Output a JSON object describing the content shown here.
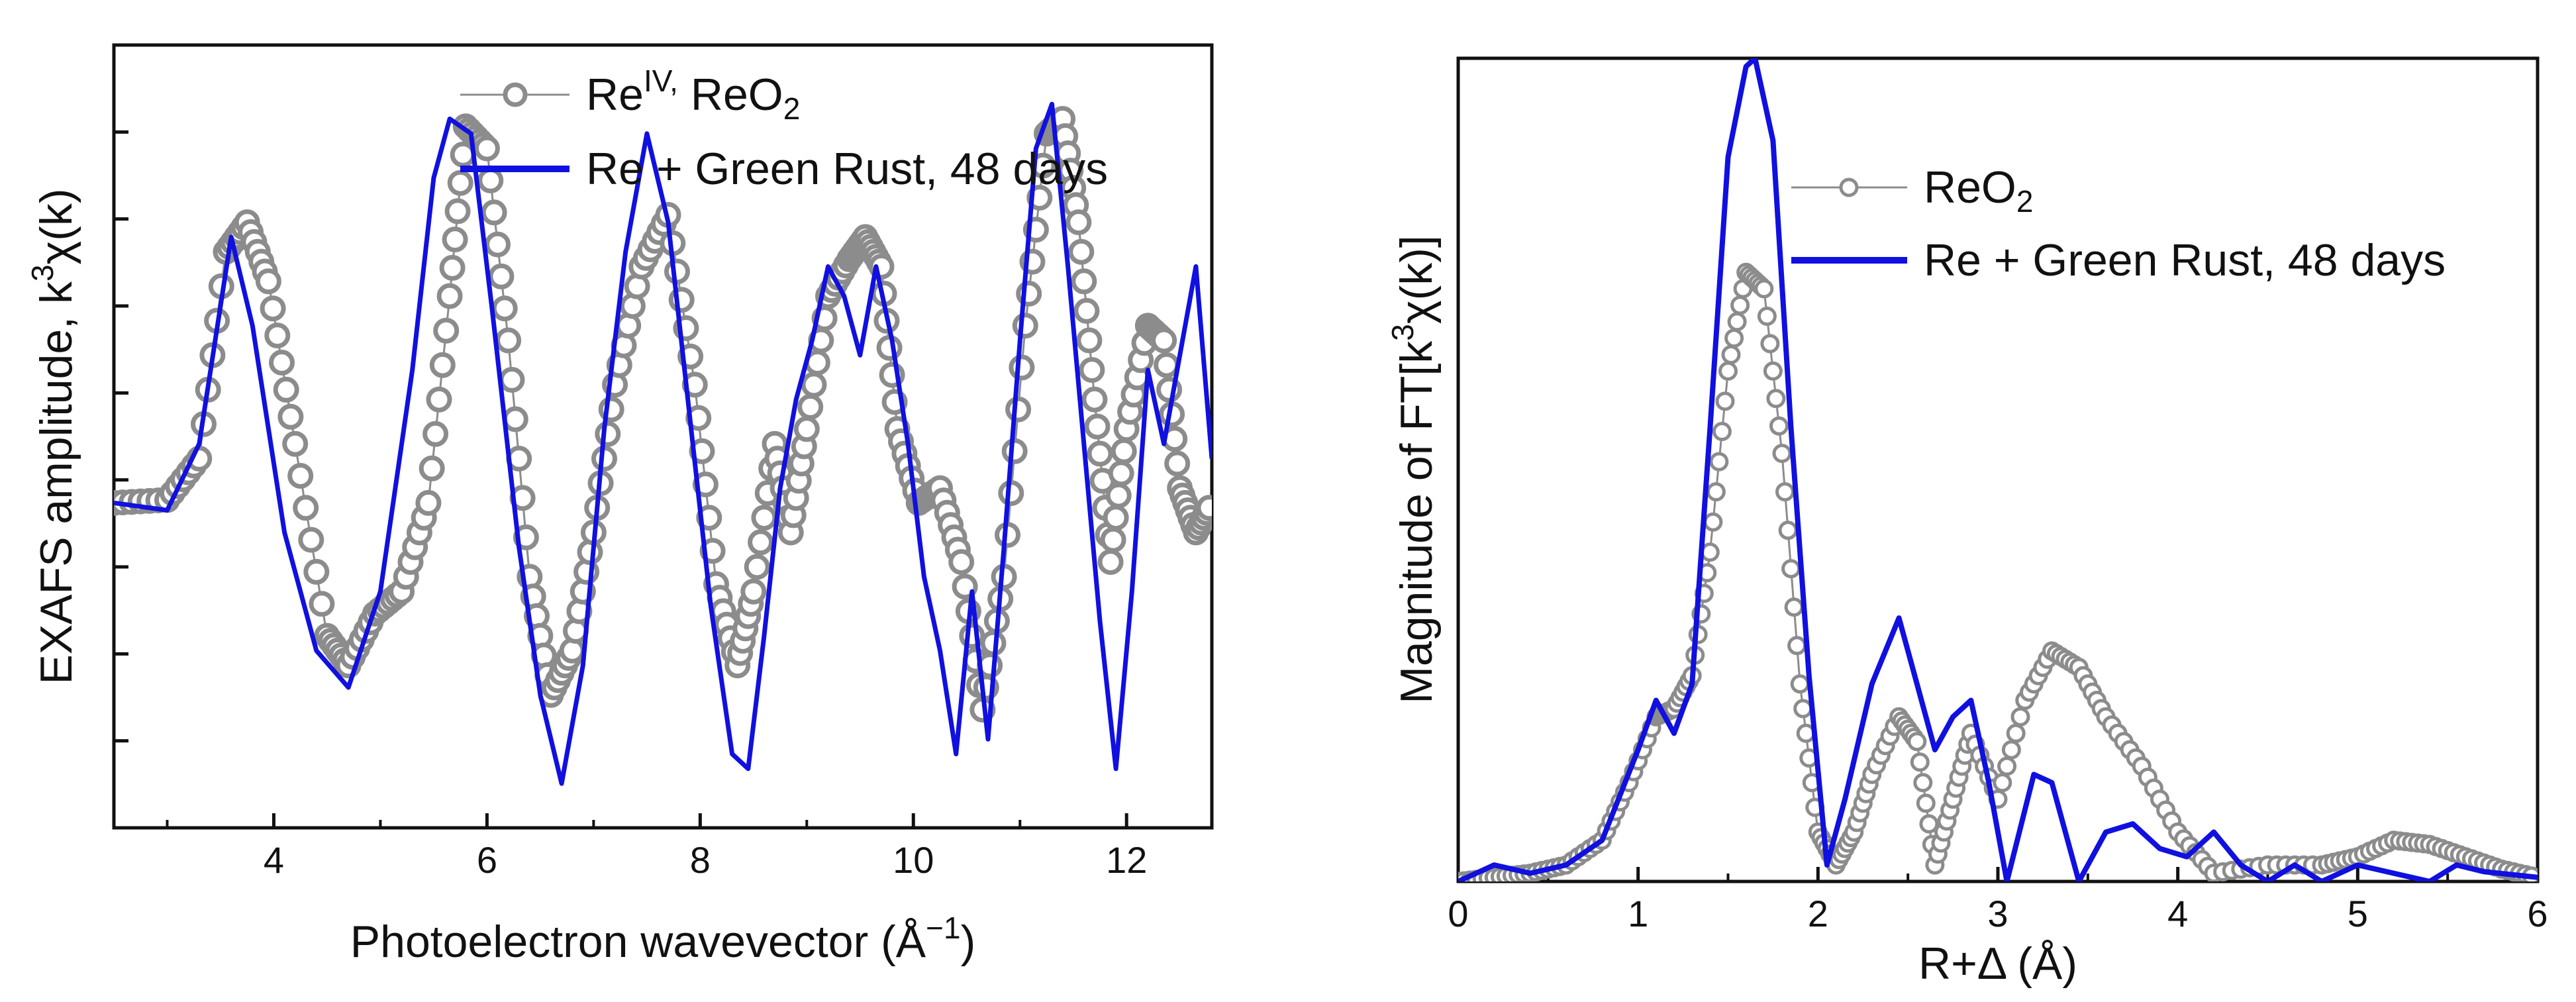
{
  "colors": {
    "reference": "#8c8c8c",
    "sample": "#1010e0",
    "axis": "#111111"
  },
  "charts": [
    {
      "xlabel_main": "Photoelectron wavevector (Å",
      "xlabel_sup": "−1",
      "xlabel_end": ")",
      "ylabel_main": "EXAFS amplitude, k",
      "ylabel_sup": "3",
      "ylabel_end": "χ(k)",
      "xticks": [
        "4",
        "6",
        "8",
        "10",
        "12"
      ],
      "legend": {
        "ref_main": "Re",
        "ref_sup": "IV,",
        "ref_end": " ReO",
        "ref_sub": "2",
        "sample": "Re + Green Rust, 48 days"
      }
    },
    {
      "xlabel": "R+Δ (Å)",
      "ylabel_main": "Magnitude of FT[k",
      "ylabel_sup": "3",
      "ylabel_end": "χ(k)]",
      "xticks": [
        "0",
        "1",
        "2",
        "3",
        "4",
        "5",
        "6"
      ],
      "legend": {
        "ref_main": "ReO",
        "ref_sub": "2",
        "sample": "Re + Green Rust, 48 days"
      }
    }
  ],
  "chart_data": [
    {
      "type": "line",
      "xlabel": "Photoelectron wavevector (Å−1)",
      "ylabel": "EXAFS amplitude, k3χ(k)",
      "xlim": [
        2.5,
        12.8
      ],
      "ylim": [
        -2.5,
        2.8
      ],
      "series": [
        {
          "name": "ReIV, ReO2",
          "marker": "circle",
          "x": [
            2.5,
            3.0,
            3.3,
            3.55,
            3.75,
            3.95,
            4.2,
            4.5,
            4.7,
            4.95,
            5.2,
            5.45,
            5.65,
            5.8,
            6.0,
            6.2,
            6.4,
            6.6,
            6.8,
            7.0,
            7.2,
            7.45,
            7.7,
            7.95,
            8.15,
            8.35,
            8.5,
            8.7,
            8.85,
            9.0,
            9.2,
            9.4,
            9.55,
            9.7,
            9.85,
            10.05,
            10.25,
            10.45,
            10.65,
            10.85,
            11.05,
            11.25,
            11.4,
            11.55,
            11.7,
            11.85,
            12.0,
            12.2,
            12.35,
            12.5,
            12.65,
            12.8
          ],
          "y": [
            -0.3,
            -0.28,
            0.0,
            1.4,
            1.6,
            1.2,
            0.1,
            -1.2,
            -1.4,
            -1.05,
            -0.9,
            -0.3,
            1.1,
            2.25,
            2.1,
            0.8,
            -0.8,
            -1.6,
            -1.3,
            -0.5,
            0.5,
            1.3,
            1.65,
            0.5,
            -0.85,
            -1.4,
            -0.9,
            0.1,
            -0.5,
            0.2,
            1.1,
            1.35,
            1.5,
            1.3,
            0.2,
            -0.3,
            -0.2,
            -0.7,
            -1.7,
            -0.8,
            0.9,
            2.2,
            2.3,
            1.6,
            0.4,
            -0.7,
            0.2,
            0.9,
            0.8,
            -0.2,
            -0.5,
            -0.3
          ]
        },
        {
          "name": "Re + Green Rust, 48 days",
          "x": [
            2.5,
            3.0,
            3.3,
            3.6,
            3.8,
            4.1,
            4.4,
            4.7,
            5.0,
            5.3,
            5.5,
            5.65,
            5.85,
            6.05,
            6.3,
            6.5,
            6.7,
            6.9,
            7.1,
            7.3,
            7.5,
            7.7,
            7.9,
            8.1,
            8.3,
            8.45,
            8.6,
            8.75,
            8.9,
            9.05,
            9.2,
            9.35,
            9.5,
            9.65,
            9.8,
            9.95,
            10.1,
            10.25,
            10.4,
            10.55,
            10.7,
            10.85,
            11.0,
            11.15,
            11.3,
            11.45,
            11.6,
            11.75,
            11.9,
            12.05,
            12.2,
            12.35,
            12.5,
            12.65,
            12.8
          ],
          "y": [
            -0.3,
            -0.35,
            0.1,
            1.5,
            0.9,
            -0.5,
            -1.3,
            -1.55,
            -0.9,
            0.6,
            1.9,
            2.3,
            2.2,
            1.0,
            -0.6,
            -1.6,
            -2.2,
            -1.4,
            0.2,
            1.4,
            2.2,
            1.6,
            0.3,
            -1.0,
            -2.0,
            -2.1,
            -1.2,
            -0.2,
            0.4,
            0.8,
            1.3,
            1.1,
            0.7,
            1.3,
            0.8,
            0.1,
            -0.8,
            -1.3,
            -2.0,
            -0.9,
            -1.9,
            -0.6,
            0.8,
            2.1,
            2.4,
            1.3,
            0.1,
            -1.1,
            -2.1,
            -0.9,
            0.6,
            0.1,
            0.7,
            1.3,
            0.0
          ]
        }
      ]
    },
    {
      "type": "line",
      "xlabel": "R+Δ (Å)",
      "ylabel": "Magnitude of FT[k3χ(k)]",
      "xlim": [
        0,
        6
      ],
      "ylim": [
        0,
        1.0
      ],
      "series": [
        {
          "name": "ReO2",
          "marker": "circle",
          "x": [
            0,
            0.2,
            0.4,
            0.6,
            0.8,
            0.95,
            1.1,
            1.2,
            1.3,
            1.4,
            1.5,
            1.6,
            1.7,
            1.8,
            1.9,
            2.0,
            2.1,
            2.2,
            2.3,
            2.45,
            2.55,
            2.65,
            2.75,
            2.85,
            3.0,
            3.15,
            3.3,
            3.45,
            3.6,
            3.8,
            4.0,
            4.2,
            4.5,
            4.8,
            5.0,
            5.2,
            5.4,
            5.6,
            5.8,
            6.0
          ],
          "y": [
            0.0,
            0.005,
            0.01,
            0.02,
            0.05,
            0.12,
            0.2,
            0.21,
            0.25,
            0.4,
            0.62,
            0.74,
            0.72,
            0.52,
            0.24,
            0.06,
            0.02,
            0.06,
            0.13,
            0.2,
            0.17,
            0.02,
            0.1,
            0.18,
            0.1,
            0.22,
            0.28,
            0.26,
            0.2,
            0.14,
            0.06,
            0.01,
            0.02,
            0.02,
            0.03,
            0.05,
            0.045,
            0.03,
            0.015,
            0.005
          ]
        },
        {
          "name": "Re + Green Rust, 48 days",
          "x": [
            0,
            0.2,
            0.4,
            0.6,
            0.8,
            1.0,
            1.1,
            1.2,
            1.3,
            1.4,
            1.5,
            1.6,
            1.65,
            1.75,
            1.85,
            1.95,
            2.05,
            2.15,
            2.3,
            2.45,
            2.55,
            2.65,
            2.75,
            2.85,
            2.95,
            3.05,
            3.2,
            3.3,
            3.45,
            3.6,
            3.75,
            3.9,
            4.05,
            4.2,
            4.35,
            4.5,
            4.65,
            4.8,
            5.0,
            5.2,
            5.4,
            5.55,
            5.7,
            6.0
          ],
          "y": [
            0.0,
            0.02,
            0.01,
            0.02,
            0.05,
            0.16,
            0.22,
            0.18,
            0.24,
            0.55,
            0.88,
            0.99,
            1.0,
            0.9,
            0.55,
            0.25,
            0.02,
            0.1,
            0.24,
            0.32,
            0.24,
            0.16,
            0.2,
            0.22,
            0.12,
            0.0,
            0.13,
            0.12,
            0.0,
            0.06,
            0.07,
            0.04,
            0.03,
            0.06,
            0.02,
            0.0,
            0.02,
            0.0,
            0.02,
            0.01,
            0.0,
            0.02,
            0.012,
            0.005
          ]
        }
      ]
    }
  ]
}
